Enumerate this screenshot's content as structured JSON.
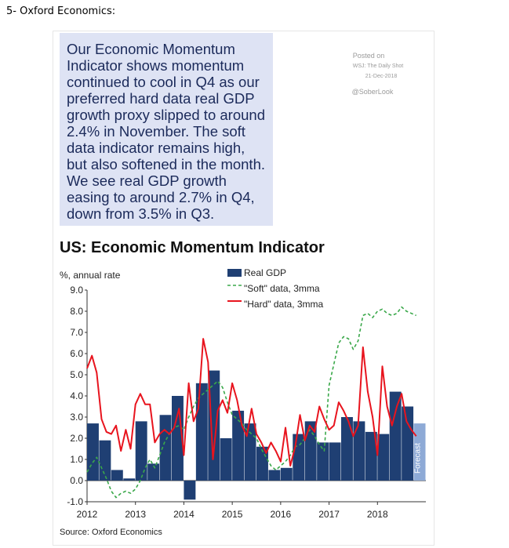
{
  "page_heading": "5- Oxford Economics:",
  "summary_text": "Our Economic Momentum Indicator shows momentum continued to cool in Q4 as our preferred hard data real GDP growth proxy slipped to around 2.4% in November. The soft data indicator remains high, but also softened in the month. We see real GDP growth easing to around 2.7% in Q4, down from 3.5% in Q3.",
  "watermark": {
    "posted_on": "Posted on",
    "outlet": "WSJ: The Daily Shot",
    "date": "21-Dec-2018",
    "handle": "@SoberLook"
  },
  "colors": {
    "bar": "#1f3f73",
    "forecast_bar": "#8eaad6",
    "soft_line": "#3aa84a",
    "hard_line": "#e8141e",
    "textbox_bg": "#dee3f4"
  },
  "chart_data": {
    "type": "bar",
    "title": "US: Economic Momentum Indicator",
    "ylabel": "%, annual rate",
    "ylim": [
      -1.0,
      9.0
    ],
    "yticks": [
      "-1.0",
      "0.0",
      "1.0",
      "2.0",
      "3.0",
      "4.0",
      "5.0",
      "6.0",
      "7.0",
      "8.0",
      "9.0"
    ],
    "x_range": [
      2012.0,
      2019.0
    ],
    "xticks": [
      {
        "label": "2012",
        "x": 2012.0
      },
      {
        "label": "2013",
        "x": 2013.0
      },
      {
        "label": "2014",
        "x": 2014.0
      },
      {
        "label": "2015",
        "x": 2015.0
      },
      {
        "label": "2016",
        "x": 2016.0
      },
      {
        "label": "2017",
        "x": 2017.0
      },
      {
        "label": "2018",
        "x": 2018.0
      }
    ],
    "legend": {
      "placement": "top-center",
      "entries": [
        "Real GDP",
        "\"Soft\" data, 3mma",
        "\"Hard\" data, 3mma"
      ]
    },
    "forecast_label": "Forecast",
    "source": "Source: Oxford Economics",
    "series": [
      {
        "name": "Real GDP",
        "kind": "bar",
        "quarters": [
          "2012Q1",
          "2012Q2",
          "2012Q3",
          "2012Q4",
          "2013Q1",
          "2013Q2",
          "2013Q3",
          "2013Q4",
          "2014Q1",
          "2014Q2",
          "2014Q3",
          "2014Q4",
          "2015Q1",
          "2015Q2",
          "2015Q3",
          "2015Q4",
          "2016Q1",
          "2016Q2",
          "2016Q3",
          "2016Q4",
          "2017Q1",
          "2017Q2",
          "2017Q3",
          "2017Q4",
          "2018Q1",
          "2018Q2",
          "2018Q3",
          "2018Q4"
        ],
        "values": [
          2.7,
          1.9,
          0.5,
          0.1,
          2.8,
          0.8,
          3.1,
          4.0,
          -0.9,
          4.6,
          5.2,
          2.0,
          3.3,
          2.7,
          1.6,
          0.5,
          0.6,
          2.2,
          2.8,
          1.8,
          1.8,
          3.0,
          2.8,
          2.3,
          2.2,
          4.2,
          3.5,
          2.7
        ],
        "forecast_from": "2018Q4"
      },
      {
        "name": "\"Soft\" data, 3mma",
        "kind": "line",
        "dashed": true,
        "x": [
          2012.0,
          2012.1,
          2012.2,
          2012.3,
          2012.4,
          2012.5,
          2012.6,
          2012.7,
          2012.8,
          2012.9,
          2013.0,
          2013.1,
          2013.2,
          2013.3,
          2013.4,
          2013.5,
          2013.6,
          2013.7,
          2013.8,
          2013.9,
          2014.0,
          2014.1,
          2014.2,
          2014.3,
          2014.4,
          2014.5,
          2014.6,
          2014.7,
          2014.8,
          2014.9,
          2015.0,
          2015.1,
          2015.2,
          2015.3,
          2015.4,
          2015.5,
          2015.6,
          2015.7,
          2015.8,
          2015.9,
          2016.0,
          2016.1,
          2016.2,
          2016.3,
          2016.4,
          2016.5,
          2016.6,
          2016.7,
          2016.8,
          2016.9,
          2017.0,
          2017.1,
          2017.2,
          2017.3,
          2017.4,
          2017.5,
          2017.6,
          2017.7,
          2017.8,
          2017.9,
          2018.0,
          2018.1,
          2018.2,
          2018.3,
          2018.4,
          2018.5,
          2018.6,
          2018.7,
          2018.8
        ],
        "values": [
          0.4,
          0.8,
          1.1,
          0.6,
          0.1,
          -0.5,
          -0.8,
          -0.6,
          -0.5,
          -0.6,
          -0.4,
          0.0,
          0.6,
          1.0,
          0.6,
          1.2,
          1.8,
          2.2,
          2.5,
          2.6,
          2.4,
          3.0,
          3.5,
          3.9,
          4.1,
          4.3,
          4.5,
          4.7,
          4.4,
          3.7,
          3.1,
          2.9,
          2.7,
          2.4,
          2.2,
          2.0,
          1.5,
          1.1,
          0.7,
          0.5,
          0.7,
          0.9,
          1.2,
          1.6,
          1.7,
          2.0,
          2.4,
          2.1,
          1.7,
          1.4,
          4.5,
          5.5,
          6.5,
          6.8,
          6.7,
          6.2,
          6.6,
          7.8,
          7.9,
          7.7,
          8.0,
          8.1,
          7.9,
          7.8,
          7.9,
          8.2,
          8.0,
          7.9,
          7.8
        ]
      },
      {
        "name": "\"Hard\" data, 3mma",
        "kind": "line",
        "dashed": false,
        "x": [
          2012.0,
          2012.1,
          2012.2,
          2012.3,
          2012.4,
          2012.5,
          2012.6,
          2012.7,
          2012.8,
          2012.9,
          2013.0,
          2013.1,
          2013.2,
          2013.3,
          2013.4,
          2013.5,
          2013.6,
          2013.7,
          2013.8,
          2013.9,
          2014.0,
          2014.1,
          2014.2,
          2014.3,
          2014.4,
          2014.5,
          2014.6,
          2014.7,
          2014.8,
          2014.9,
          2015.0,
          2015.1,
          2015.2,
          2015.3,
          2015.4,
          2015.5,
          2015.6,
          2015.7,
          2015.8,
          2015.9,
          2016.0,
          2016.1,
          2016.2,
          2016.3,
          2016.4,
          2016.5,
          2016.6,
          2016.7,
          2016.8,
          2016.9,
          2017.0,
          2017.1,
          2017.2,
          2017.3,
          2017.4,
          2017.5,
          2017.6,
          2017.7,
          2017.8,
          2017.9,
          2018.0,
          2018.1,
          2018.2,
          2018.3,
          2018.4,
          2018.5,
          2018.6,
          2018.7,
          2018.8
        ],
        "values": [
          5.3,
          5.9,
          5.1,
          2.9,
          2.3,
          2.2,
          2.6,
          1.4,
          2.4,
          1.5,
          3.6,
          4.1,
          3.6,
          3.6,
          1.8,
          2.2,
          2.4,
          2.2,
          2.5,
          3.4,
          1.2,
          4.6,
          2.8,
          3.4,
          6.7,
          5.6,
          1.0,
          3.3,
          3.8,
          3.2,
          4.6,
          3.8,
          2.6,
          2.1,
          3.4,
          2.2,
          1.8,
          1.3,
          1.8,
          1.4,
          0.9,
          2.5,
          0.7,
          1.6,
          3.1,
          1.9,
          2.6,
          2.3,
          3.5,
          2.9,
          2.4,
          2.6,
          3.7,
          3.3,
          2.8,
          2.1,
          2.6,
          6.3,
          4.2,
          3.0,
          1.2,
          5.4,
          3.5,
          2.6,
          3.5,
          4.1,
          2.8,
          2.4,
          2.1
        ]
      }
    ]
  }
}
